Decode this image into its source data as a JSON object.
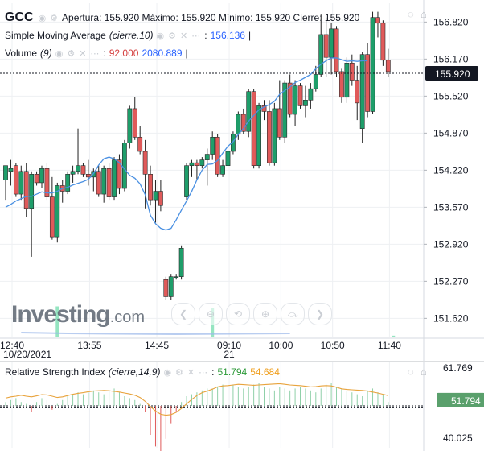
{
  "header": {
    "symbol": "GCC",
    "ohlc_text": "Apertura: 155.920 Máximo: 155.920 Mínimo: 155.920 Cierre: 155.920",
    "sma_label": "Simple Moving Average",
    "sma_params": "(cierre,10)",
    "sma_value": "156.136",
    "volume_label": "Volume",
    "volume_params": "(9)",
    "volume_value": "92.000",
    "volume_ma_value": "2080.889"
  },
  "rsi_header": {
    "label": "Relative Strength Index",
    "params": "(cierre,14,9)",
    "value": "51.794",
    "signal_value": "54.684"
  },
  "watermark": {
    "brand": "Investing",
    "suffix": ".com"
  },
  "colors": {
    "up": "#1e9e6a",
    "down": "#e05a5a",
    "sma": "#4a90e2",
    "rsi": "#e8a33c",
    "last_price_tag": "#131722",
    "rsi_tag": "#5aa06c"
  },
  "chart_data": [
    {
      "type": "candlestick",
      "title": "GCC",
      "y_ticks": [
        "156.820",
        "156.170",
        "155.520",
        "154.870",
        "154.220",
        "153.570",
        "152.920",
        "152.270",
        "151.620"
      ],
      "y_range": [
        151.3,
        157.15
      ],
      "x_ticks": [
        "12:40",
        "13:55",
        "14:45",
        "09:10",
        "10:00",
        "10:50",
        "11:40"
      ],
      "x_date_labels": [
        "10/20/2021",
        "21"
      ],
      "last_price": "155.920",
      "candles": [
        {
          "o": 154.05,
          "h": 154.3,
          "l": 153.7,
          "c": 154.3
        },
        {
          "o": 154.2,
          "h": 154.4,
          "l": 153.95,
          "c": 154.25
        },
        {
          "o": 154.3,
          "h": 154.35,
          "l": 153.75,
          "c": 153.8
        },
        {
          "o": 153.8,
          "h": 154.3,
          "l": 153.7,
          "c": 154.2
        },
        {
          "o": 154.2,
          "h": 154.35,
          "l": 153.4,
          "c": 153.55
        },
        {
          "o": 153.55,
          "h": 154.2,
          "l": 152.7,
          "c": 154.15
        },
        {
          "o": 154.15,
          "h": 154.2,
          "l": 153.95,
          "c": 154.0
        },
        {
          "o": 154.0,
          "h": 154.3,
          "l": 153.9,
          "c": 154.25
        },
        {
          "o": 154.25,
          "h": 154.35,
          "l": 153.7,
          "c": 153.75
        },
        {
          "o": 153.75,
          "h": 154.1,
          "l": 153.0,
          "c": 153.05
        },
        {
          "o": 153.05,
          "h": 154.0,
          "l": 152.95,
          "c": 153.95
        },
        {
          "o": 153.95,
          "h": 154.05,
          "l": 153.65,
          "c": 153.85
        },
        {
          "o": 153.85,
          "h": 154.2,
          "l": 153.8,
          "c": 154.15
        },
        {
          "o": 154.15,
          "h": 154.3,
          "l": 154.0,
          "c": 154.2
        },
        {
          "o": 154.2,
          "h": 154.95,
          "l": 154.15,
          "c": 154.3
        },
        {
          "o": 154.3,
          "h": 154.35,
          "l": 154.1,
          "c": 154.15
        },
        {
          "o": 154.15,
          "h": 154.4,
          "l": 153.95,
          "c": 154.1
        },
        {
          "o": 154.1,
          "h": 154.25,
          "l": 153.85,
          "c": 154.2
        },
        {
          "o": 154.2,
          "h": 154.3,
          "l": 153.75,
          "c": 153.8
        },
        {
          "o": 153.8,
          "h": 154.3,
          "l": 153.65,
          "c": 154.25
        },
        {
          "o": 154.25,
          "h": 154.35,
          "l": 153.7,
          "c": 153.75
        },
        {
          "o": 153.75,
          "h": 154.45,
          "l": 153.7,
          "c": 154.4
        },
        {
          "o": 154.4,
          "h": 154.5,
          "l": 153.8,
          "c": 153.9
        },
        {
          "o": 153.9,
          "h": 154.75,
          "l": 153.85,
          "c": 154.7
        },
        {
          "o": 154.7,
          "h": 155.35,
          "l": 154.6,
          "c": 155.3
        },
        {
          "o": 155.3,
          "h": 155.5,
          "l": 154.75,
          "c": 154.8
        },
        {
          "o": 154.8,
          "h": 155.0,
          "l": 154.5,
          "c": 154.55
        },
        {
          "o": 154.55,
          "h": 154.75,
          "l": 153.55,
          "c": 154.15
        },
        {
          "o": 154.15,
          "h": 154.3,
          "l": 153.6,
          "c": 153.7
        },
        {
          "o": 153.7,
          "h": 154.05,
          "l": 153.3,
          "c": 153.85
        },
        {
          "o": 153.85,
          "h": 154.05,
          "l": 153.5,
          "c": 153.6
        },
        {
          "o": 152.3,
          "h": 152.35,
          "l": 151.95,
          "c": 152.0
        },
        {
          "o": 152.0,
          "h": 152.4,
          "l": 151.95,
          "c": 152.35
        },
        {
          "o": 152.35,
          "h": 152.4,
          "l": 152.3,
          "c": 152.35
        },
        {
          "o": 152.35,
          "h": 152.9,
          "l": 152.3,
          "c": 152.85
        },
        {
          "o": 153.75,
          "h": 154.35,
          "l": 153.7,
          "c": 154.3
        },
        {
          "o": 154.3,
          "h": 154.4,
          "l": 154.1,
          "c": 154.35
        },
        {
          "o": 154.35,
          "h": 154.4,
          "l": 154.05,
          "c": 154.3
        },
        {
          "o": 154.3,
          "h": 154.45,
          "l": 154.25,
          "c": 154.4
        },
        {
          "o": 154.4,
          "h": 154.6,
          "l": 153.95,
          "c": 154.5
        },
        {
          "o": 154.5,
          "h": 154.9,
          "l": 154.4,
          "c": 154.8
        },
        {
          "o": 154.8,
          "h": 154.85,
          "l": 154.1,
          "c": 154.15
        },
        {
          "o": 154.15,
          "h": 154.4,
          "l": 154.1,
          "c": 154.3
        },
        {
          "o": 154.3,
          "h": 154.6,
          "l": 154.2,
          "c": 154.55
        },
        {
          "o": 154.55,
          "h": 154.9,
          "l": 154.5,
          "c": 154.85
        },
        {
          "o": 154.85,
          "h": 155.25,
          "l": 154.75,
          "c": 155.2
        },
        {
          "o": 155.2,
          "h": 155.3,
          "l": 154.85,
          "c": 154.9
        },
        {
          "o": 154.9,
          "h": 155.65,
          "l": 154.8,
          "c": 155.6
        },
        {
          "o": 155.6,
          "h": 155.65,
          "l": 154.25,
          "c": 154.3
        },
        {
          "o": 154.3,
          "h": 155.4,
          "l": 154.25,
          "c": 155.35
        },
        {
          "o": 155.35,
          "h": 155.45,
          "l": 155.1,
          "c": 155.25
        },
        {
          "o": 155.25,
          "h": 155.45,
          "l": 154.3,
          "c": 154.35
        },
        {
          "o": 154.35,
          "h": 155.4,
          "l": 154.3,
          "c": 155.3
        },
        {
          "o": 155.3,
          "h": 155.8,
          "l": 154.75,
          "c": 154.8
        },
        {
          "o": 154.8,
          "h": 155.8,
          "l": 154.7,
          "c": 155.75
        },
        {
          "o": 155.75,
          "h": 155.9,
          "l": 155.15,
          "c": 155.2
        },
        {
          "o": 155.2,
          "h": 155.8,
          "l": 155.0,
          "c": 155.7
        },
        {
          "o": 155.7,
          "h": 155.75,
          "l": 155.3,
          "c": 155.35
        },
        {
          "o": 155.35,
          "h": 155.7,
          "l": 155.15,
          "c": 155.45
        },
        {
          "o": 155.45,
          "h": 155.75,
          "l": 155.3,
          "c": 155.65
        },
        {
          "o": 155.65,
          "h": 156.05,
          "l": 155.6,
          "c": 155.9
        },
        {
          "o": 155.9,
          "h": 156.95,
          "l": 155.85,
          "c": 156.6
        },
        {
          "o": 156.6,
          "h": 156.9,
          "l": 155.85,
          "c": 156.2
        },
        {
          "o": 156.2,
          "h": 156.8,
          "l": 155.9,
          "c": 156.7
        },
        {
          "o": 156.7,
          "h": 156.75,
          "l": 155.85,
          "c": 155.95
        },
        {
          "o": 155.95,
          "h": 156.0,
          "l": 155.4,
          "c": 155.5
        },
        {
          "o": 155.5,
          "h": 156.2,
          "l": 155.4,
          "c": 156.1
        },
        {
          "o": 156.1,
          "h": 156.25,
          "l": 155.7,
          "c": 155.8
        },
        {
          "o": 155.8,
          "h": 156.05,
          "l": 155.1,
          "c": 155.4
        },
        {
          "o": 154.95,
          "h": 156.3,
          "l": 154.7,
          "c": 156.25
        },
        {
          "o": 156.25,
          "h": 156.45,
          "l": 155.15,
          "c": 155.25
        },
        {
          "o": 155.25,
          "h": 157.0,
          "l": 155.2,
          "c": 156.9
        },
        {
          "o": 156.9,
          "h": 157.0,
          "l": 156.55,
          "c": 156.8
        },
        {
          "o": 156.8,
          "h": 156.85,
          "l": 156.05,
          "c": 156.15
        },
        {
          "o": 156.15,
          "h": 156.35,
          "l": 155.85,
          "c": 155.95
        }
      ],
      "sma_values": [
        153.57,
        153.62,
        153.68,
        153.72,
        153.76,
        153.76,
        153.8,
        153.84,
        153.82,
        153.82,
        153.85,
        153.9,
        153.92,
        153.96,
        153.99,
        154.02,
        154.06,
        154.16,
        154.31,
        154.42,
        154.45,
        154.42,
        154.35,
        154.24,
        154.13,
        154.08,
        153.98,
        153.79,
        153.43,
        153.28,
        153.2,
        153.17,
        153.2,
        153.35,
        153.52,
        153.68,
        153.85,
        154.05,
        154.22,
        154.32,
        154.33,
        154.39,
        154.52,
        154.64,
        154.72,
        154.85,
        154.95,
        155.08,
        155.18,
        155.28,
        155.33,
        155.37,
        155.43,
        155.55,
        155.62,
        155.68,
        155.76,
        155.8,
        155.85,
        155.9,
        156.0,
        156.08,
        156.14,
        156.19,
        156.19,
        156.16,
        156.13,
        156.14,
        156.13,
        156.14,
        156.14
      ]
    },
    {
      "type": "bar",
      "title": "Volume",
      "note": "volume histogram overlaid at bottom of price pane",
      "values": [
        0,
        0,
        0,
        0,
        0,
        0,
        0,
        0,
        0,
        0,
        3000,
        0,
        0,
        0,
        0,
        0,
        0,
        0,
        0,
        0,
        0,
        0,
        0,
        0,
        0,
        0,
        0,
        0,
        0,
        0,
        0,
        0,
        0,
        0,
        0,
        0,
        0,
        0,
        0,
        0,
        2800,
        0,
        0,
        0,
        0,
        0,
        0,
        0,
        0,
        0,
        0,
        0,
        0,
        0,
        0,
        0,
        0,
        0,
        0,
        0,
        0,
        0,
        0,
        0,
        0,
        0,
        0,
        0,
        0,
        0,
        0,
        0,
        0,
        0,
        0,
        92
      ],
      "ma_values_note": "volume moving average (9) shown as low flat line"
    },
    {
      "type": "line",
      "title": "Relative Strength Index",
      "y_ticks": [
        "61.769",
        "40.025"
      ],
      "y_range": [
        37.0,
        63.5
      ],
      "current_value": "51.794",
      "signal_value": "54.684",
      "rsi_values": [
        52.4,
        52.8,
        53.0,
        53.3,
        53.0,
        52.8,
        53.1,
        53.5,
        53.4,
        53.0,
        52.6,
        52.8,
        53.2,
        53.6,
        53.9,
        54.1,
        54.4,
        54.6,
        54.7,
        54.8,
        54.7,
        54.5,
        54.3,
        54.0,
        53.7,
        53.3,
        52.6,
        51.4,
        49.8,
        48.4,
        47.4,
        47.1,
        47.3,
        48.0,
        49.2,
        50.6,
        52.0,
        53.2,
        54.1,
        54.6,
        55.2,
        55.9,
        56.2,
        56.3,
        56.5,
        56.7,
        56.6,
        56.5,
        56.4,
        56.5,
        56.6,
        56.7,
        56.8,
        56.9,
        56.7,
        56.5,
        56.4,
        56.3,
        56.1,
        55.9,
        56.0,
        56.2,
        56.3,
        56.2,
        55.8,
        55.3,
        55.1,
        55.0,
        54.9,
        54.8,
        54.6,
        54.3,
        54.0,
        53.6,
        53.2
      ],
      "histogram": [
        2,
        3,
        4,
        2,
        1,
        -3,
        2,
        4,
        3,
        -2,
        1,
        3,
        5,
        6,
        7,
        6,
        7,
        8,
        7,
        6,
        8,
        9,
        7,
        5,
        4,
        3,
        1,
        -3,
        -15,
        -21,
        -24,
        -17,
        -9,
        -3,
        2,
        5,
        6,
        7,
        8,
        9,
        9,
        10,
        11,
        10,
        11,
        10,
        9,
        10,
        11,
        12,
        10,
        9,
        8,
        10,
        9,
        8,
        9,
        10,
        9,
        8,
        7,
        9,
        11,
        12,
        10,
        9,
        8,
        7,
        6,
        5,
        8,
        9,
        7,
        6,
        2
      ]
    }
  ]
}
